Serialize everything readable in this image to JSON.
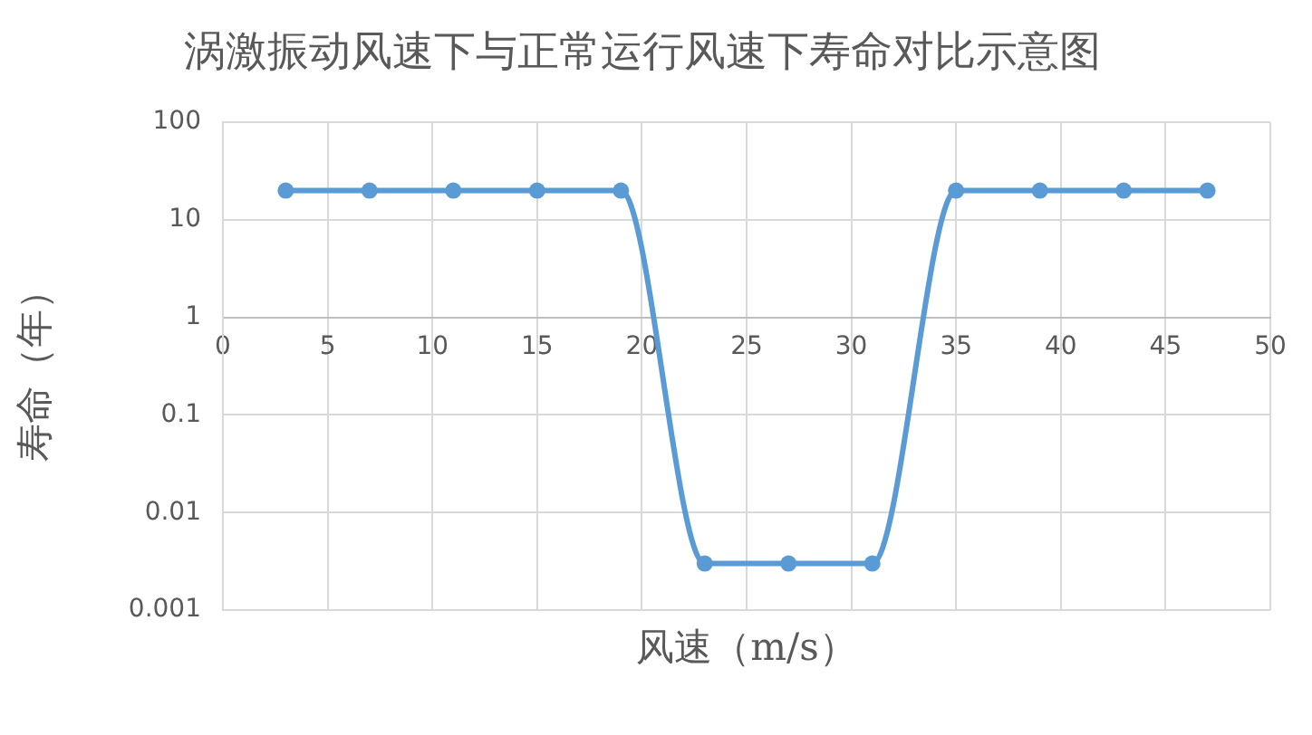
{
  "chart_data": {
    "type": "line",
    "title": "涡激振动风速下与正常运行风速下寿命对比示意图",
    "xlabel": "风速（m/s）",
    "ylabel": "寿命（年）",
    "x": [
      3,
      7,
      11,
      15,
      19,
      23,
      27,
      31,
      35,
      39,
      43,
      47
    ],
    "series": [
      {
        "color": "#5b9bd5",
        "values": [
          20,
          20,
          20,
          20,
          20,
          0.003,
          0.003,
          0.003,
          20,
          20,
          20,
          20
        ]
      }
    ],
    "xlim": [
      0,
      50
    ],
    "xticks": [
      0,
      5,
      10,
      15,
      20,
      25,
      30,
      35,
      40,
      45,
      50
    ],
    "ylim": [
      0.001,
      100
    ],
    "yticks": [
      0.001,
      0.01,
      0.1,
      1,
      10,
      100
    ],
    "log": true,
    "grid": true,
    "legend": false,
    "marker": "circle",
    "line_style": "solid"
  }
}
